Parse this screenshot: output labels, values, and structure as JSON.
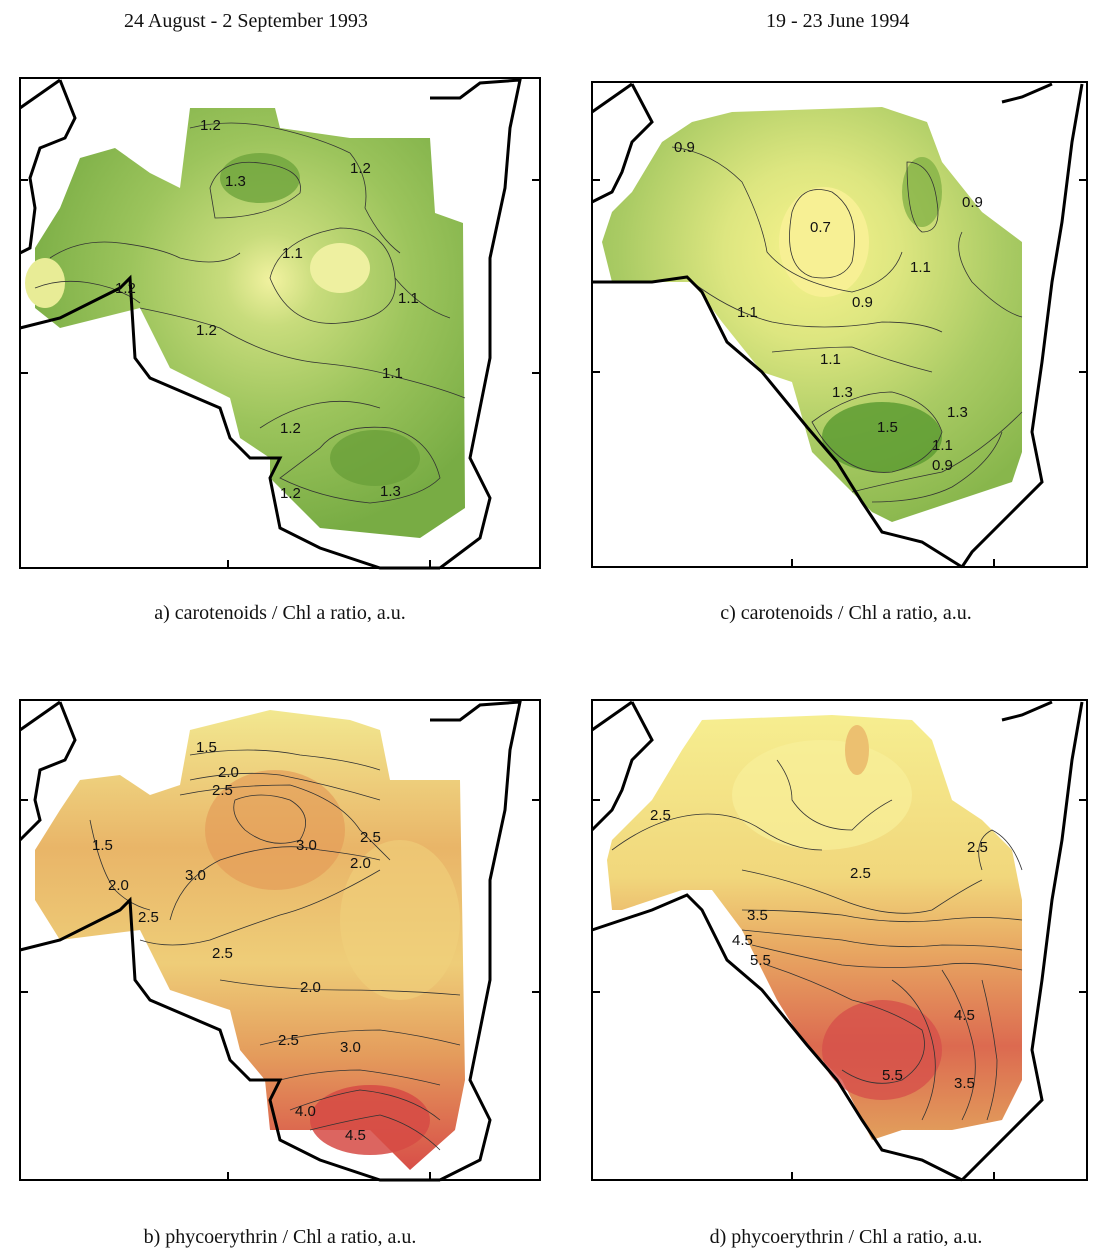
{
  "headers": {
    "left": "24 August - 2 September 1993",
    "right": "19 - 23 June 1994"
  },
  "chart_data": [
    {
      "type": "heatmap",
      "caption": "a) carotenoids / Chl a ratio, a.u.",
      "period": "24 August - 2 September 1993",
      "colors": {
        "low": "#ecef99",
        "mid": "#a8c860",
        "high": "#6aa43a"
      },
      "contour_labels": [
        "1.2",
        "1.3",
        "1.2",
        "1.1",
        "1.2",
        "1.2",
        "1.1",
        "1.1",
        "1.2",
        "1.2",
        "1.3"
      ],
      "features": [
        {
          "kind": "peak",
          "value": 1.3,
          "location": "northwest"
        },
        {
          "kind": "minimum",
          "value": 1.1,
          "location": "center"
        },
        {
          "kind": "peak",
          "value": 1.3,
          "location": "south"
        }
      ]
    },
    {
      "type": "heatmap",
      "caption": "b) phycoerythrin / Chl a ratio, a.u.",
      "period": "24 August - 2 September 1993",
      "colors": {
        "low": "#f2e887",
        "mid": "#e8a860",
        "high": "#d85c4a"
      },
      "contour_labels": [
        "1.5",
        "2.0",
        "2.5",
        "1.5",
        "2.0",
        "3.0",
        "3.0",
        "2.5",
        "2.0",
        "2.5",
        "2.5",
        "2.0",
        "2.5",
        "3.0",
        "4.0",
        "4.5"
      ],
      "features": [
        {
          "kind": "peak",
          "value": 3.0,
          "location": "north"
        },
        {
          "kind": "minimum",
          "value": 2.0,
          "location": "east"
        },
        {
          "kind": "peak",
          "value": 4.5,
          "location": "south"
        }
      ]
    },
    {
      "type": "heatmap",
      "caption": "c) carotenoids / Chl a ratio, a.u.",
      "period": "19 - 23 June 1994",
      "colors": {
        "low": "#f4f08a",
        "mid": "#c0d66c",
        "high": "#6aa43a"
      },
      "contour_labels": [
        "0.9",
        "0.7",
        "0.9",
        "1.1",
        "0.9",
        "1.1",
        "1.1",
        "1.3",
        "1.5",
        "1.3",
        "1.1",
        "0.9"
      ],
      "features": [
        {
          "kind": "minimum",
          "value": 0.7,
          "location": "center-north"
        },
        {
          "kind": "peak",
          "value": 1.5,
          "location": "south"
        }
      ]
    },
    {
      "type": "heatmap",
      "caption": "d) phycoerythrin / Chl a ratio, a.u.",
      "period": "19 - 23 June 1994",
      "colors": {
        "low": "#f5ec8a",
        "mid": "#e8a860",
        "high": "#d64b44"
      },
      "contour_labels": [
        "2.5",
        "2.5",
        "2.5",
        "3.5",
        "4.5",
        "5.5",
        "4.5",
        "5.5",
        "3.5"
      ],
      "features": [
        {
          "kind": "minimum",
          "value": 2.5,
          "location": "north"
        },
        {
          "kind": "peak",
          "value": 5.5,
          "location": "southwest"
        }
      ]
    }
  ]
}
